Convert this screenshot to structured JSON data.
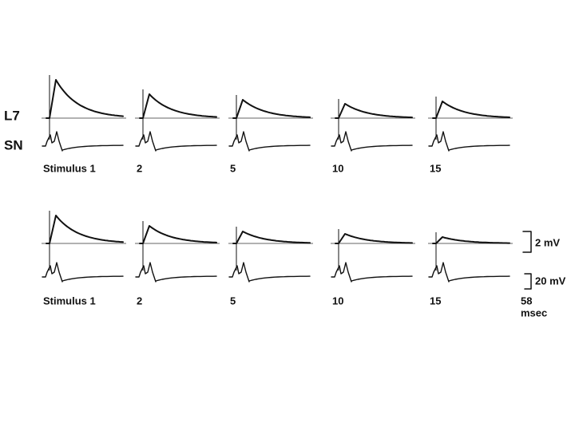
{
  "labels": {
    "l7": "L7",
    "sn": "SN"
  },
  "rows": [
    {
      "stimuli": [
        "Stimulus 1",
        "2",
        "5",
        "10",
        "15"
      ]
    },
    {
      "stimuli": [
        "Stimulus 1",
        "2",
        "5",
        "10",
        "15"
      ]
    }
  ],
  "scale_bar": {
    "epsp": "2 mV",
    "spike": "20 mV",
    "time": "58",
    "time_unit": "msec"
  }
}
